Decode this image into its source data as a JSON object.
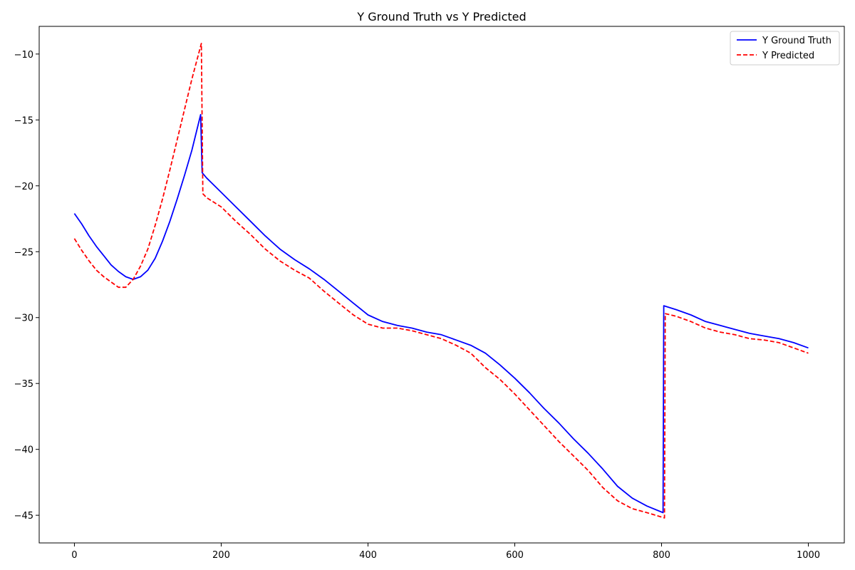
{
  "chart_data": {
    "type": "line",
    "title": "Y Ground Truth vs Y Predicted",
    "xlabel": "",
    "ylabel": "",
    "xlim": [
      -48,
      1049
    ],
    "ylim": [
      -47.1,
      -7.9
    ],
    "x_ticks": [
      0,
      200,
      400,
      600,
      800,
      1000
    ],
    "y_ticks": [
      -10,
      -15,
      -20,
      -25,
      -30,
      -35,
      -40,
      -45
    ],
    "grid": false,
    "legend_position": "top-right",
    "series": [
      {
        "name": "Y Ground Truth",
        "color": "#0000ff",
        "style": "solid",
        "points": [
          [
            0,
            -22.1
          ],
          [
            10,
            -22.9
          ],
          [
            20,
            -23.8
          ],
          [
            30,
            -24.6
          ],
          [
            40,
            -25.3
          ],
          [
            50,
            -26.0
          ],
          [
            60,
            -26.5
          ],
          [
            70,
            -26.9
          ],
          [
            80,
            -27.1
          ],
          [
            90,
            -26.9
          ],
          [
            100,
            -26.4
          ],
          [
            110,
            -25.5
          ],
          [
            120,
            -24.2
          ],
          [
            130,
            -22.7
          ],
          [
            140,
            -21.0
          ],
          [
            150,
            -19.2
          ],
          [
            160,
            -17.3
          ],
          [
            172,
            -14.6
          ],
          [
            174,
            -19.0
          ],
          [
            180,
            -19.4
          ],
          [
            200,
            -20.5
          ],
          [
            220,
            -21.6
          ],
          [
            240,
            -22.7
          ],
          [
            260,
            -23.8
          ],
          [
            280,
            -24.8
          ],
          [
            300,
            -25.6
          ],
          [
            320,
            -26.3
          ],
          [
            340,
            -27.1
          ],
          [
            360,
            -28.0
          ],
          [
            380,
            -28.9
          ],
          [
            400,
            -29.8
          ],
          [
            420,
            -30.3
          ],
          [
            440,
            -30.6
          ],
          [
            460,
            -30.8
          ],
          [
            480,
            -31.1
          ],
          [
            500,
            -31.3
          ],
          [
            520,
            -31.7
          ],
          [
            540,
            -32.1
          ],
          [
            560,
            -32.7
          ],
          [
            580,
            -33.6
          ],
          [
            600,
            -34.6
          ],
          [
            620,
            -35.7
          ],
          [
            640,
            -36.9
          ],
          [
            660,
            -38.0
          ],
          [
            680,
            -39.2
          ],
          [
            700,
            -40.3
          ],
          [
            720,
            -41.5
          ],
          [
            740,
            -42.8
          ],
          [
            760,
            -43.7
          ],
          [
            780,
            -44.3
          ],
          [
            802,
            -44.8
          ],
          [
            803,
            -29.1
          ],
          [
            820,
            -29.4
          ],
          [
            840,
            -29.8
          ],
          [
            860,
            -30.3
          ],
          [
            880,
            -30.6
          ],
          [
            900,
            -30.9
          ],
          [
            920,
            -31.2
          ],
          [
            940,
            -31.4
          ],
          [
            960,
            -31.6
          ],
          [
            980,
            -31.9
          ],
          [
            1000,
            -32.3
          ]
        ]
      },
      {
        "name": "Y Predicted",
        "color": "#ff0000",
        "style": "dashed",
        "points": [
          [
            0,
            -24.0
          ],
          [
            10,
            -24.9
          ],
          [
            20,
            -25.7
          ],
          [
            30,
            -26.4
          ],
          [
            40,
            -26.9
          ],
          [
            50,
            -27.3
          ],
          [
            60,
            -27.7
          ],
          [
            70,
            -27.7
          ],
          [
            80,
            -27.1
          ],
          [
            90,
            -26.1
          ],
          [
            100,
            -24.8
          ],
          [
            110,
            -23.0
          ],
          [
            120,
            -21.0
          ],
          [
            130,
            -18.8
          ],
          [
            140,
            -16.5
          ],
          [
            150,
            -14.2
          ],
          [
            160,
            -11.9
          ],
          [
            173,
            -9.2
          ],
          [
            175,
            -20.6
          ],
          [
            180,
            -20.9
          ],
          [
            200,
            -21.6
          ],
          [
            220,
            -22.7
          ],
          [
            240,
            -23.7
          ],
          [
            260,
            -24.8
          ],
          [
            280,
            -25.7
          ],
          [
            300,
            -26.4
          ],
          [
            320,
            -27.0
          ],
          [
            340,
            -28.0
          ],
          [
            360,
            -28.9
          ],
          [
            380,
            -29.8
          ],
          [
            400,
            -30.5
          ],
          [
            420,
            -30.8
          ],
          [
            440,
            -30.8
          ],
          [
            460,
            -31.0
          ],
          [
            480,
            -31.3
          ],
          [
            500,
            -31.6
          ],
          [
            520,
            -32.1
          ],
          [
            540,
            -32.7
          ],
          [
            560,
            -33.8
          ],
          [
            580,
            -34.7
          ],
          [
            600,
            -35.8
          ],
          [
            620,
            -37.0
          ],
          [
            640,
            -38.2
          ],
          [
            660,
            -39.4
          ],
          [
            680,
            -40.5
          ],
          [
            700,
            -41.6
          ],
          [
            720,
            -42.9
          ],
          [
            740,
            -43.9
          ],
          [
            760,
            -44.5
          ],
          [
            780,
            -44.8
          ],
          [
            804,
            -45.2
          ],
          [
            805,
            -29.7
          ],
          [
            820,
            -29.9
          ],
          [
            840,
            -30.3
          ],
          [
            860,
            -30.8
          ],
          [
            880,
            -31.1
          ],
          [
            900,
            -31.3
          ],
          [
            920,
            -31.6
          ],
          [
            940,
            -31.7
          ],
          [
            960,
            -31.9
          ],
          [
            980,
            -32.3
          ],
          [
            1000,
            -32.7
          ]
        ]
      }
    ]
  }
}
